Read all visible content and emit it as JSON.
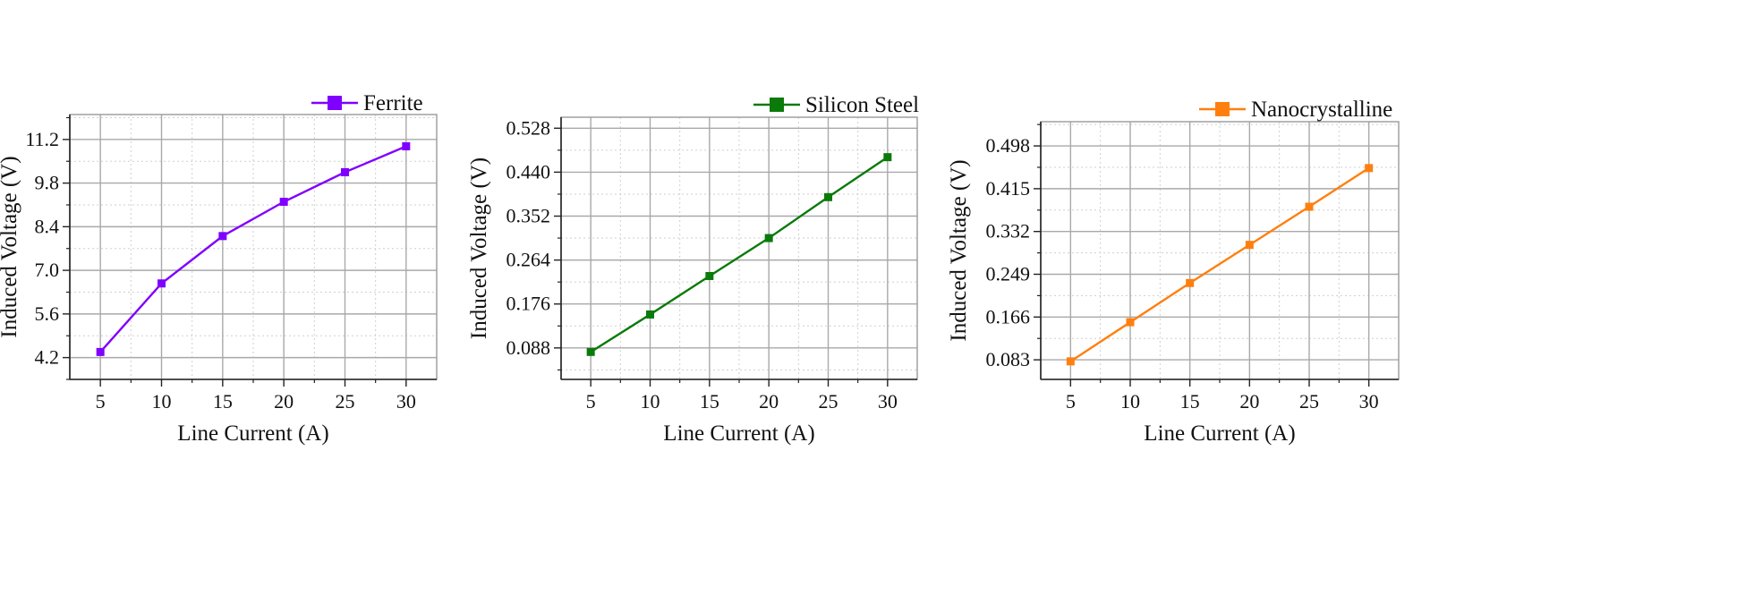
{
  "chart_data": [
    {
      "type": "line",
      "xlabel": "Line Current (A)",
      "ylabel": "Induced Voltage (V)",
      "x": [
        5,
        10,
        15,
        20,
        25,
        30
      ],
      "xlim": [
        2.5,
        32.5
      ],
      "xticks": [
        5,
        10,
        15,
        20,
        25,
        30
      ],
      "ylim": [
        3.5,
        12.0
      ],
      "yticks": [
        4.2,
        5.6,
        7.0,
        8.4,
        9.8,
        11.2
      ],
      "ytick_labels": [
        "4.2",
        "5.6",
        "7.0",
        "8.4",
        "9.8",
        "11.2"
      ],
      "grid": true,
      "legend_position": "top-right",
      "series": [
        {
          "name": "Ferrite",
          "color": "#8000ff",
          "marker": "square",
          "values": [
            4.38,
            6.58,
            8.1,
            9.2,
            10.15,
            10.98
          ]
        }
      ]
    },
    {
      "type": "line",
      "xlabel": "Line Current (A)",
      "ylabel": "Induced Voltage (V)",
      "x": [
        5,
        10,
        15,
        20,
        25,
        30
      ],
      "xlim": [
        2.5,
        32.5
      ],
      "xticks": [
        5,
        10,
        15,
        20,
        25,
        30
      ],
      "ylim": [
        0.025,
        0.55
      ],
      "yticks": [
        0.088,
        0.176,
        0.264,
        0.352,
        0.44,
        0.528
      ],
      "ytick_labels": [
        "0.088",
        "0.176",
        "0.264",
        "0.352",
        "0.440",
        "0.528"
      ],
      "grid": true,
      "legend_position": "top-right",
      "series": [
        {
          "name": "Silicon Steel",
          "color": "#0a7a0a",
          "marker": "square",
          "values": [
            0.08,
            0.155,
            0.232,
            0.308,
            0.39,
            0.47
          ]
        }
      ]
    },
    {
      "type": "line",
      "xlabel": "Line Current (A)",
      "ylabel": "Induced Voltage (V)",
      "x": [
        5,
        10,
        15,
        20,
        25,
        30
      ],
      "xlim": [
        2.5,
        32.5
      ],
      "xticks": [
        5,
        10,
        15,
        20,
        25,
        30
      ],
      "ylim": [
        0.045,
        0.545
      ],
      "yticks": [
        0.083,
        0.166,
        0.249,
        0.332,
        0.415,
        0.498
      ],
      "ytick_labels": [
        "0.083",
        "0.166",
        "0.249",
        "0.332",
        "0.415",
        "0.498"
      ],
      "grid": true,
      "legend_position": "top-right",
      "series": [
        {
          "name": "Nanocrystalline",
          "color": "#ff7f0e",
          "marker": "square",
          "values": [
            0.08,
            0.156,
            0.232,
            0.306,
            0.38,
            0.455
          ]
        }
      ]
    }
  ]
}
